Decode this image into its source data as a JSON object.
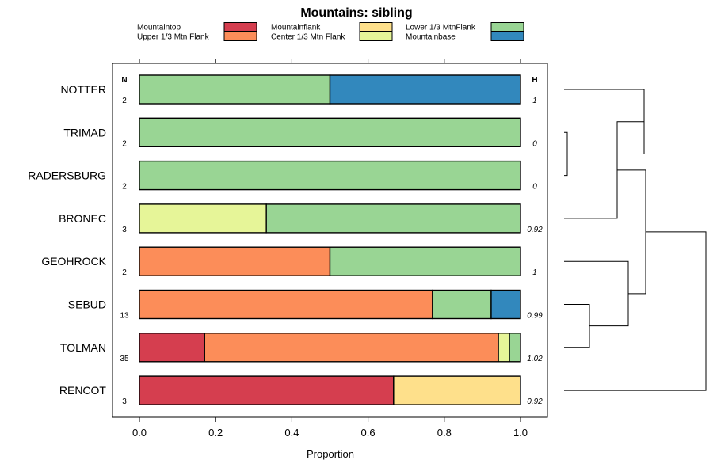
{
  "chart_data": {
    "type": "bar",
    "stacked": true,
    "orientation": "horizontal",
    "title": "Mountains: sibling",
    "xlabel": "Proportion",
    "xlim": [
      0,
      1
    ],
    "xticks": [
      0.0,
      0.2,
      0.4,
      0.6,
      0.8,
      1.0
    ],
    "xtick_labels": [
      "0.0",
      "0.2",
      "0.4",
      "0.6",
      "0.8",
      "1.0"
    ],
    "n_header": "N",
    "h_header": "H",
    "legend": [
      {
        "name": "Mountaintop",
        "color": "#d53e4f"
      },
      {
        "name": "Upper 1/3 Mtn Flank",
        "color": "#fc8d59"
      },
      {
        "name": "Mountainflank",
        "color": "#fee08b"
      },
      {
        "name": "Center 1/3 Mtn Flank",
        "color": "#e6f598"
      },
      {
        "name": "Lower 1/3 MtnFlank",
        "color": "#99d594"
      },
      {
        "name": "Mountainbase",
        "color": "#3288bd"
      }
    ],
    "rows": [
      {
        "label": "NOTTER",
        "n": "2",
        "h": "1",
        "values": [
          0,
          0,
          0,
          0,
          0.5,
          0.5
        ]
      },
      {
        "label": "TRIMAD",
        "n": "2",
        "h": "0",
        "values": [
          0,
          0,
          0,
          0,
          1.0,
          0
        ]
      },
      {
        "label": "RADERSBURG",
        "n": "2",
        "h": "0",
        "values": [
          0,
          0,
          0,
          0,
          1.0,
          0
        ]
      },
      {
        "label": "BRONEC",
        "n": "3",
        "h": "0.92",
        "values": [
          0,
          0,
          0,
          0.333,
          0.667,
          0
        ]
      },
      {
        "label": "GEOHROCK",
        "n": "2",
        "h": "1",
        "values": [
          0,
          0.5,
          0,
          0,
          0.5,
          0
        ]
      },
      {
        "label": "SEBUD",
        "n": "13",
        "h": "0.99",
        "values": [
          0,
          0.769,
          0,
          0,
          0.154,
          0.077
        ]
      },
      {
        "label": "TOLMAN",
        "n": "35",
        "h": "1.02",
        "values": [
          0.171,
          0.771,
          0,
          0.029,
          0.029,
          0
        ]
      },
      {
        "label": "RENCOT",
        "n": "3",
        "h": "0.92",
        "values": [
          0.667,
          0,
          0.333,
          0,
          0,
          0
        ]
      }
    ],
    "dendrogram": {
      "merges": [
        [
          1,
          2
        ],
        [
          0,
          "a"
        ],
        [
          3,
          "b"
        ],
        [
          5,
          6
        ],
        [
          4,
          "d"
        ],
        [
          "c",
          "e"
        ],
        [
          7,
          "f"
        ]
      ]
    }
  }
}
